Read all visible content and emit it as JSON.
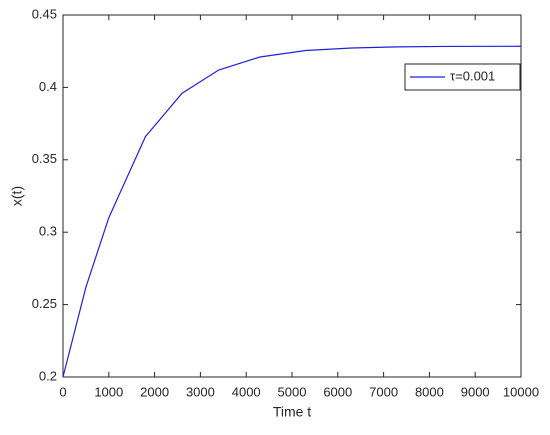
{
  "chart_data": {
    "type": "line",
    "xlabel": "Time t",
    "ylabel": "x(t)",
    "x": [
      0,
      500,
      1000,
      1800,
      2600,
      3400,
      4300,
      5300,
      6300,
      7300,
      8300,
      10000
    ],
    "series": [
      {
        "name": "τ=0.001",
        "color": "#2020e0",
        "values": [
          0.2,
          0.262,
          0.31,
          0.366,
          0.396,
          0.412,
          0.421,
          0.4255,
          0.4272,
          0.428,
          0.4283,
          0.4284
        ]
      }
    ],
    "xlim": [
      0,
      10000
    ],
    "xticks": [
      0,
      1000,
      2000,
      3000,
      4000,
      5000,
      6000,
      7000,
      8000,
      9000,
      10000
    ],
    "ylim": [
      0.2,
      0.45
    ],
    "yticks": [
      0.2,
      0.25,
      0.3,
      0.35,
      0.4,
      0.45
    ],
    "grid": false,
    "legend": "northeast"
  }
}
